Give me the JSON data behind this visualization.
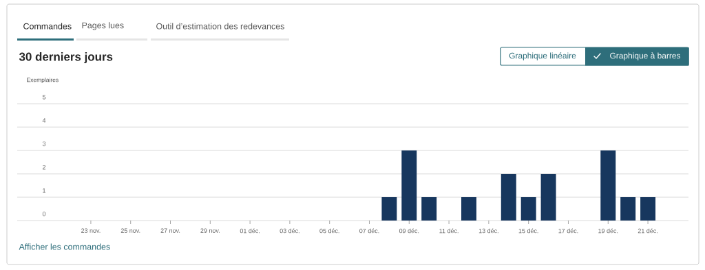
{
  "chart_data": {
    "type": "bar",
    "title": "30 derniers jours",
    "ylabel": "Exemplaires",
    "categories": [
      null,
      "23 nov.",
      null,
      "25 nov.",
      null,
      "27 nov.",
      null,
      "29 nov.",
      null,
      "01 déc.",
      null,
      "03 déc.",
      null,
      "05 déc.",
      null,
      "07 déc.",
      null,
      "09 déc.",
      null,
      "11 déc.",
      null,
      "13 déc.",
      null,
      "15 déc.",
      null,
      "17 déc.",
      null,
      "19 déc.",
      null,
      "21 déc."
    ],
    "values": [
      0,
      0,
      0,
      0,
      0,
      0,
      0,
      0,
      0,
      0,
      0,
      0,
      0,
      0,
      0,
      0,
      1,
      3,
      1,
      0,
      1,
      0,
      2,
      1,
      2,
      0,
      0,
      3,
      1,
      1
    ],
    "color": "#17375e",
    "ylim": [
      0,
      5
    ],
    "yticks": [
      0,
      1,
      2,
      3,
      4,
      5
    ],
    "grid": "y",
    "annotations": [
      "Commandes",
      "Pages lues",
      "Outil d’estimation des redevances",
      "Graphique linéaire",
      "Graphique à barres",
      "Afficher les commandes"
    ]
  }
}
